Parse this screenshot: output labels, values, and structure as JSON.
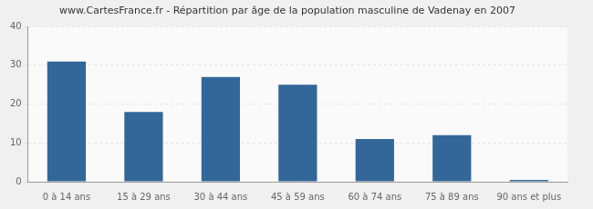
{
  "chart_data": {
    "type": "bar",
    "title": "www.CartesFrance.fr - Répartition par âge de la population masculine de Vadenay en 2007",
    "categories": [
      "0 à 14 ans",
      "15 à 29 ans",
      "30 à 44 ans",
      "45 à 59 ans",
      "60 à 74 ans",
      "75 à 89 ans",
      "90 ans et plus"
    ],
    "values": [
      31,
      18,
      27,
      25,
      11,
      12,
      0
    ],
    "color": "#336699",
    "ylim": [
      0,
      40
    ],
    "yticks": [
      0,
      10,
      20,
      30,
      40
    ],
    "grid": true
  }
}
